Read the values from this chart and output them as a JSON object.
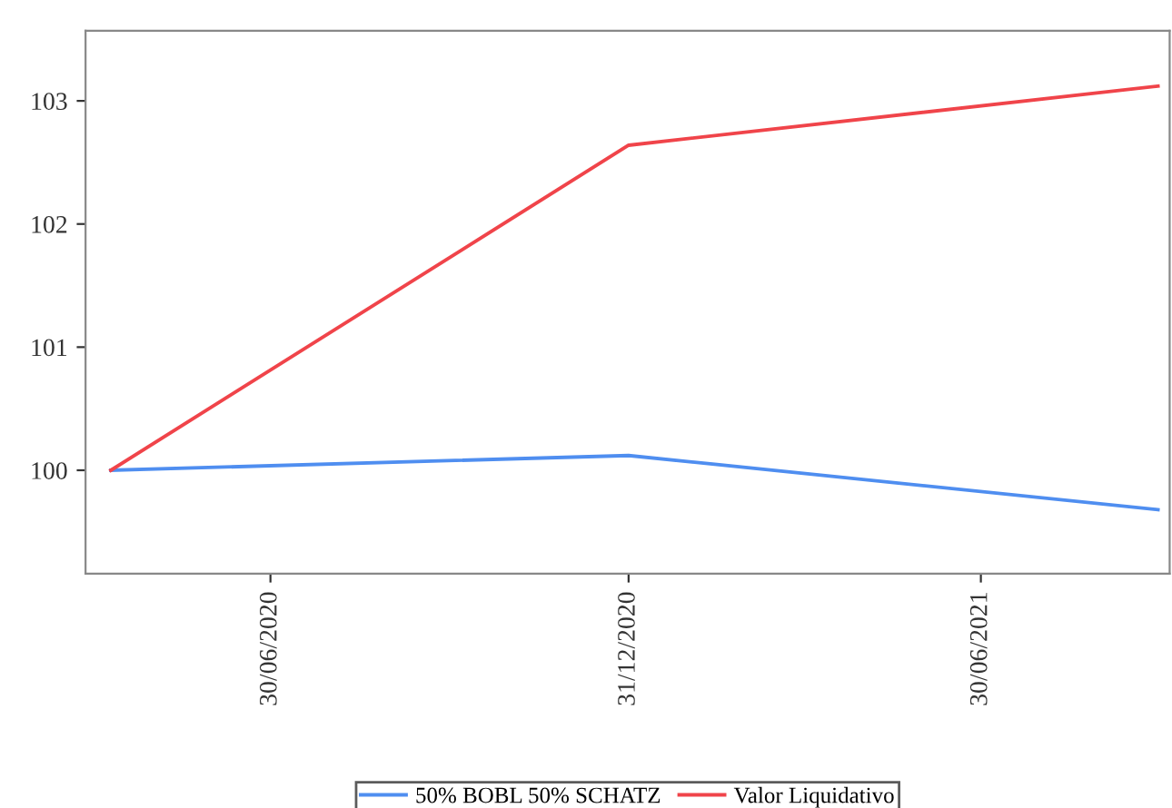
{
  "chart_data": {
    "type": "line",
    "x": [
      "2020-04-09",
      "2020-12-31",
      "2021-09-29"
    ],
    "series": [
      {
        "name": "50% BOBL 50% SCHATZ",
        "color": "#4f8ef0",
        "values": [
          100,
          100.12,
          99.68
        ]
      },
      {
        "name": "Valor Liquidativo",
        "color": "#f0444a",
        "values": [
          100,
          102.64,
          103.12
        ]
      }
    ],
    "xlim": [
      "2020-03-27",
      "2021-10-05"
    ],
    "xticks": [
      {
        "value": "2020-06-30",
        "label": "30/06/2020"
      },
      {
        "value": "2020-12-31",
        "label": "31/12/2020"
      },
      {
        "value": "2021-06-30",
        "label": "30/06/2021"
      }
    ],
    "ylim": [
      99.16,
      103.57
    ],
    "yticks": [
      100,
      101,
      102,
      103
    ],
    "grid": false,
    "legend": "bottom",
    "marker": "none",
    "line_style": "solid"
  }
}
